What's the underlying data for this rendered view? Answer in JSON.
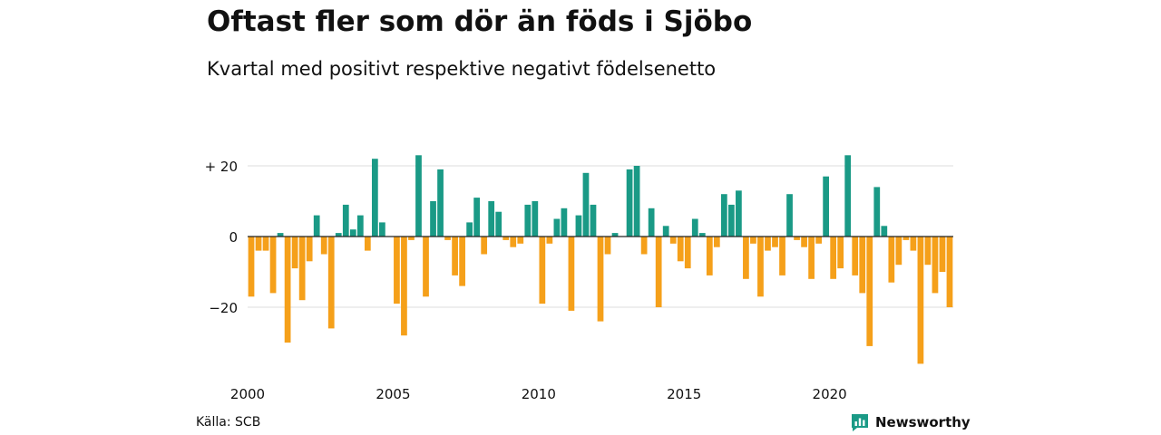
{
  "chart_data": {
    "type": "bar",
    "title": "Oftast fler som dör än föds i Sjöbo",
    "subtitle": "Kvartal med positivt respektive negativt födelsenetto",
    "xlabel": "",
    "ylabel": "",
    "x_start_year": 2000,
    "quarters_per_year": 4,
    "x_tick_labels": [
      "2000",
      "2005",
      "2010",
      "2015",
      "2020"
    ],
    "x_tick_years": [
      2000,
      2005,
      2010,
      2015,
      2020
    ],
    "y_ticks": [
      20,
      0,
      -20
    ],
    "y_tick_labels": [
      "+ 20",
      "0",
      "−20"
    ],
    "ylim": [
      -37,
      25
    ],
    "xlim": [
      2000,
      2024
    ],
    "grid": true,
    "colors": {
      "positive": "#1a9a86",
      "negative": "#f5a01a"
    },
    "values": [
      -17,
      -4,
      -4,
      -16,
      1,
      -30,
      -9,
      -18,
      -7,
      6,
      -5,
      -26,
      1,
      9,
      2,
      6,
      -4,
      22,
      4,
      0,
      -19,
      -28,
      -1,
      23,
      -17,
      10,
      19,
      -1,
      -11,
      -14,
      4,
      11,
      -5,
      10,
      7,
      -1,
      -3,
      -2,
      9,
      10,
      -19,
      -2,
      5,
      8,
      -21,
      6,
      18,
      9,
      -24,
      -5,
      1,
      0,
      19,
      20,
      -5,
      8,
      -20,
      3,
      -2,
      -7,
      -9,
      5,
      1,
      -11,
      -3,
      12,
      9,
      13,
      -12,
      -2,
      -17,
      -4,
      -3,
      -11,
      12,
      -1,
      -3,
      -12,
      -2,
      17,
      -12,
      -9,
      23,
      -11,
      -16,
      -31,
      14,
      3,
      -13,
      -8,
      -1,
      -4,
      -36,
      -8,
      -16,
      -10,
      -20
    ]
  },
  "footer": {
    "source": "Källa: SCB",
    "brand": "Newsworthy",
    "brand_icon": "newsworthy-logo-icon"
  }
}
